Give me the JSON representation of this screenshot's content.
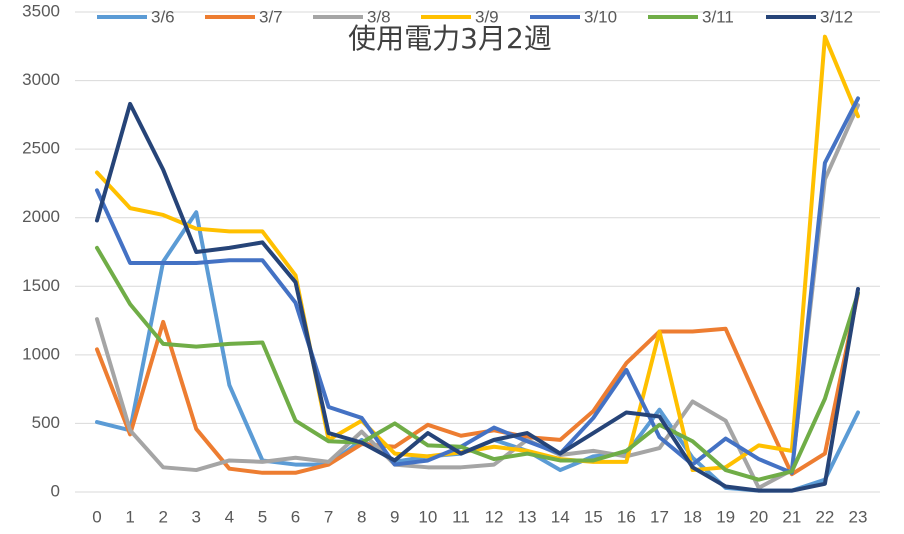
{
  "chart_data": {
    "type": "line",
    "title": "使用電力3月2週",
    "categories": [
      "0",
      "1",
      "2",
      "3",
      "4",
      "5",
      "6",
      "7",
      "8",
      "9",
      "10",
      "11",
      "12",
      "13",
      "14",
      "15",
      "16",
      "17",
      "18",
      "19",
      "20",
      "21",
      "22",
      "23"
    ],
    "ylim": [
      0,
      3500
    ],
    "yticks": [
      0,
      500,
      1000,
      1500,
      2000,
      2500,
      3000,
      3500
    ],
    "grid": true,
    "legend": "top",
    "series": [
      {
        "name": "3/6",
        "color": "#5b9bd5",
        "values": [
          510,
          450,
          1680,
          2040,
          780,
          230,
          200,
          200,
          380,
          220,
          260,
          280,
          380,
          300,
          160,
          260,
          280,
          600,
          250,
          30,
          10,
          10,
          90,
          580
        ]
      },
      {
        "name": "3/7",
        "color": "#ed7d31",
        "values": [
          1040,
          420,
          1240,
          460,
          170,
          140,
          140,
          200,
          350,
          330,
          490,
          410,
          450,
          400,
          380,
          590,
          940,
          1170,
          1170,
          1190,
          650,
          130,
          280,
          1450
        ]
      },
      {
        "name": "3/8",
        "color": "#a5a5a5",
        "values": [
          1260,
          450,
          180,
          160,
          230,
          220,
          250,
          220,
          440,
          200,
          180,
          180,
          200,
          380,
          270,
          300,
          260,
          320,
          660,
          520,
          30,
          160,
          2280,
          2820
        ]
      },
      {
        "name": "3/9",
        "color": "#ffc000",
        "values": [
          2330,
          2070,
          2020,
          1920,
          1900,
          1900,
          1580,
          380,
          520,
          280,
          260,
          290,
          330,
          300,
          240,
          220,
          220,
          1170,
          160,
          180,
          340,
          300,
          3320,
          2740
        ]
      },
      {
        "name": "3/10",
        "color": "#4472c4",
        "values": [
          2200,
          1670,
          1670,
          1670,
          1690,
          1690,
          1380,
          620,
          540,
          200,
          230,
          330,
          470,
          370,
          280,
          540,
          890,
          400,
          200,
          390,
          240,
          140,
          2400,
          2870
        ]
      },
      {
        "name": "3/11",
        "color": "#70ad47",
        "values": [
          1780,
          1370,
          1080,
          1060,
          1080,
          1090,
          520,
          370,
          360,
          500,
          340,
          330,
          240,
          280,
          230,
          230,
          300,
          490,
          370,
          160,
          90,
          150,
          680,
          1450
        ]
      },
      {
        "name": "3/12",
        "color": "#264478",
        "values": [
          1980,
          2830,
          2350,
          1750,
          1780,
          1820,
          1530,
          430,
          360,
          230,
          430,
          280,
          380,
          430,
          280,
          430,
          580,
          550,
          180,
          40,
          10,
          10,
          60,
          1480
        ]
      }
    ]
  }
}
